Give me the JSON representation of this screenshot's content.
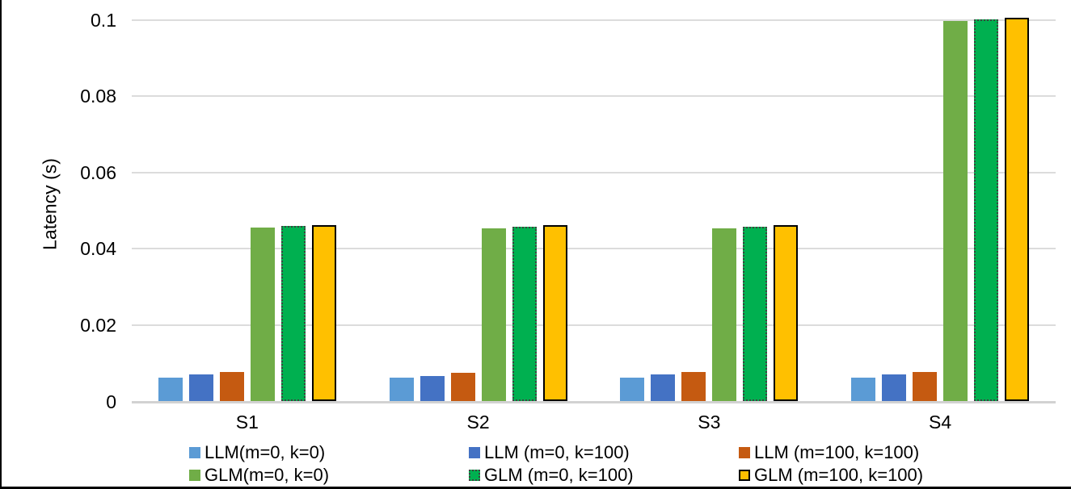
{
  "chart_data": {
    "type": "bar",
    "title": "",
    "xlabel": "",
    "ylabel": "Latency (s)",
    "categories": [
      "S1",
      "S2",
      "S3",
      "S4"
    ],
    "series": [
      {
        "name": "LLM(m=0, k=0)",
        "color": "#5B9BD5",
        "border": "none",
        "values": [
          0.0063,
          0.0062,
          0.0063,
          0.0063
        ]
      },
      {
        "name": "LLM (m=0, k=100)",
        "color": "#4472C4",
        "border": "none",
        "values": [
          0.007,
          0.0067,
          0.007,
          0.007
        ]
      },
      {
        "name": "LLM (m=100, k=100)",
        "color": "#C55A11",
        "border": "none",
        "values": [
          0.0078,
          0.0075,
          0.0077,
          0.0077
        ]
      },
      {
        "name": "GLM(m=0, k=0)",
        "color": "#70AD47",
        "border": "none",
        "values": [
          0.0456,
          0.0453,
          0.0453,
          0.0997
        ]
      },
      {
        "name": "GLM (m=0, k=100)",
        "color": "#00B050",
        "border": "dotted",
        "values": [
          0.0459,
          0.0457,
          0.0458,
          0.1002
        ]
      },
      {
        "name": "GLM (m=100, k=100)",
        "color": "#FFC000",
        "border": "solid",
        "values": [
          0.0461,
          0.0461,
          0.0461,
          0.1006
        ]
      }
    ],
    "ylim": [
      0,
      0.1
    ],
    "yticks": [
      0,
      0.02,
      0.04,
      0.06,
      0.08,
      0.1
    ],
    "ytick_labels": [
      "0",
      "0.02",
      "0.04",
      "0.06",
      "0.08",
      "0.1"
    ],
    "grid": true,
    "grid_color": "#DCDCDC",
    "border_dark_color": "#000000",
    "dotted_border_color": "#404040",
    "legend_position": "bottom",
    "legend_rows": 2,
    "legend_columns": 3
  }
}
